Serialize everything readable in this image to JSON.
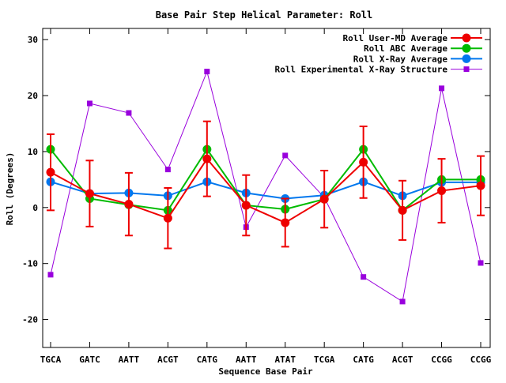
{
  "chart_data": {
    "type": "line",
    "title": "Base Pair Step Helical Parameter: Roll",
    "xlabel": "Sequence Base Pair",
    "ylabel": "Roll (Degrees)",
    "ylim": [
      -25,
      32
    ],
    "yticks": [
      -20,
      -10,
      0,
      10,
      20,
      30
    ],
    "categories": [
      "TGCA",
      "GATC",
      "AATT",
      "ACGT",
      "CATG",
      "AATT",
      "ATAT",
      "TCGA",
      "CATG",
      "ACGT",
      "CCGG",
      "CCGG"
    ],
    "legend_position": "top-right",
    "grid": false,
    "series": [
      {
        "name": "Roll User-MD Average",
        "color": "#ee0000",
        "marker": "circle",
        "values": [
          6.3,
          2.5,
          0.6,
          -1.9,
          8.7,
          0.4,
          -2.7,
          1.5,
          8.1,
          -0.5,
          3.0,
          3.9
        ],
        "error": [
          6.8,
          5.9,
          5.6,
          5.4,
          6.7,
          5.4,
          4.3,
          5.1,
          6.4,
          5.3,
          5.7,
          5.3
        ]
      },
      {
        "name": "Roll ABC Average",
        "color": "#00bb00",
        "marker": "circle",
        "values": [
          10.4,
          1.6,
          0.5,
          -0.5,
          10.4,
          0.4,
          -0.3,
          1.5,
          10.4,
          -0.5,
          5.0,
          5.0
        ]
      },
      {
        "name": "Roll X-Ray Average",
        "color": "#0077ee",
        "marker": "circle",
        "values": [
          4.6,
          2.5,
          2.6,
          2.1,
          4.6,
          2.6,
          1.6,
          2.2,
          4.6,
          2.1,
          4.5,
          4.5
        ]
      },
      {
        "name": "Roll Experimental X-Ray Structure",
        "color": "#9900dd",
        "marker": "square",
        "values": [
          -12.0,
          18.6,
          16.9,
          6.8,
          24.3,
          -3.5,
          9.3,
          1.8,
          -12.4,
          -16.8,
          21.3,
          -9.9
        ]
      }
    ]
  }
}
